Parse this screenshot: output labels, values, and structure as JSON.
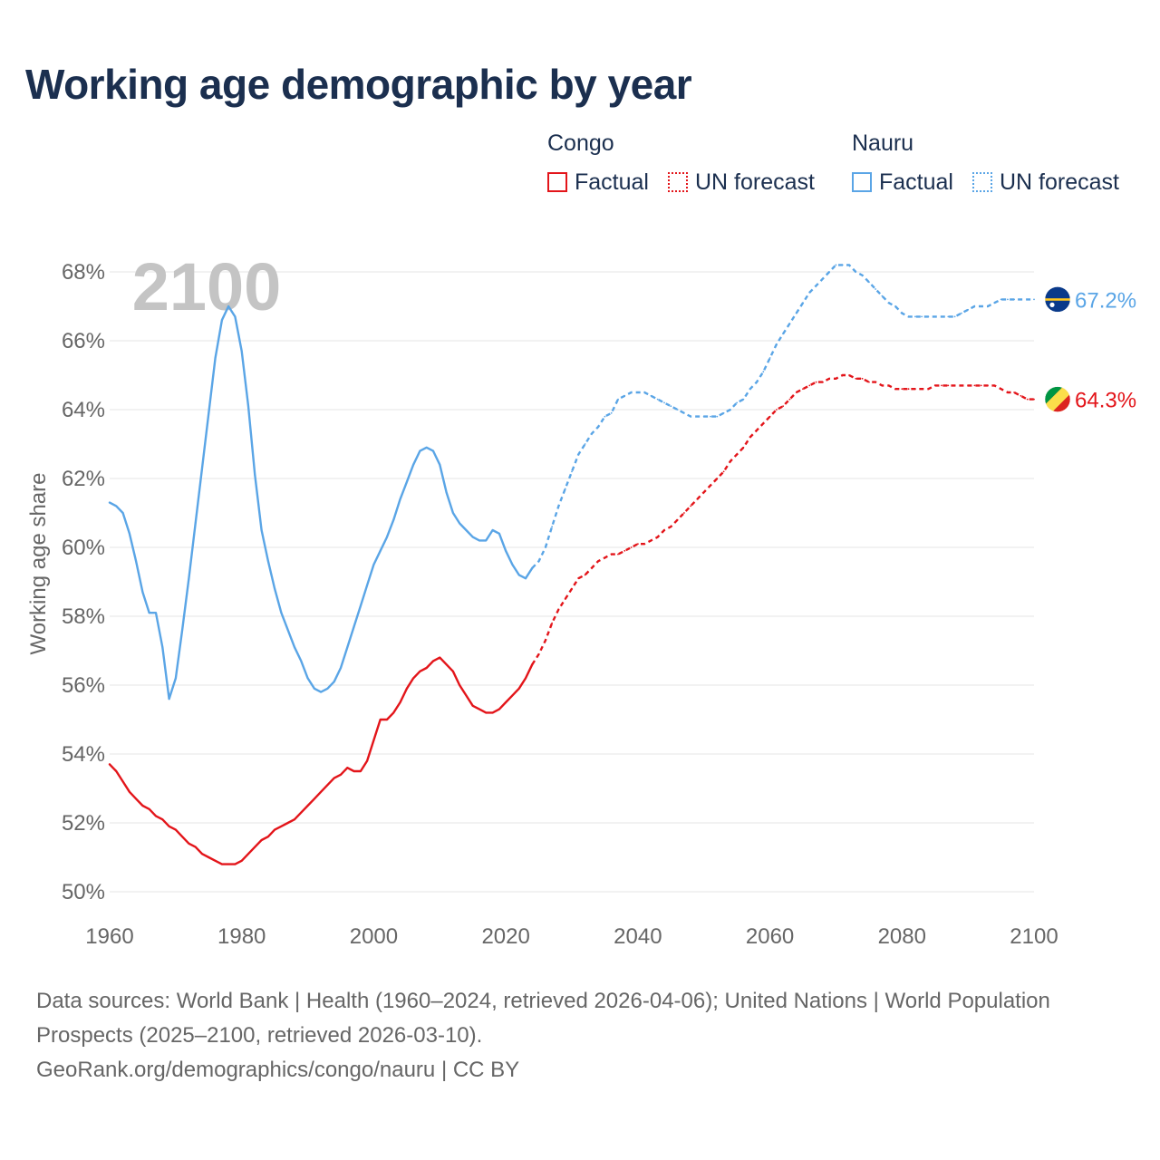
{
  "title": "Working age demographic by year",
  "legend": {
    "groups": [
      {
        "name": "Congo",
        "color": "#e3151a",
        "items": [
          {
            "label": "Factual",
            "style": "solid"
          },
          {
            "label": "UN forecast",
            "style": "dotted"
          }
        ]
      },
      {
        "name": "Nauru",
        "color": "#5aa5e6",
        "items": [
          {
            "label": "Factual",
            "style": "solid"
          },
          {
            "label": "UN forecast",
            "style": "dotted"
          }
        ]
      }
    ]
  },
  "footer": {
    "sources": "Data sources: World Bank | Health (1960–2024, retrieved 2026-04-06); United Nations | World Population Prospects (2025–2100, retrieved 2026-03-10).",
    "credit": "GeoRank.org/demographics/congo/nauru | CC BY"
  },
  "chart_data": {
    "type": "line",
    "ylabel": "Working age share",
    "xlabel": "",
    "year_label": "2100",
    "xlim": [
      1960,
      2100
    ],
    "ylim": [
      50,
      68
    ],
    "x_ticks": [
      1960,
      1980,
      2000,
      2020,
      2040,
      2060,
      2080,
      2100
    ],
    "y_ticks": [
      50,
      52,
      54,
      56,
      58,
      60,
      62,
      64,
      66,
      68
    ],
    "y_tick_labels": [
      "50%",
      "52%",
      "54%",
      "56%",
      "58%",
      "60%",
      "62%",
      "64%",
      "66%",
      "68%"
    ],
    "forecast_start": 2024,
    "grid": true,
    "series": [
      {
        "name": "Nauru",
        "color": "#5aa5e6",
        "end_label": "67.2%",
        "flag": "nauru-flag",
        "points": [
          [
            1960,
            61.3
          ],
          [
            1961,
            61.2
          ],
          [
            1962,
            61.0
          ],
          [
            1963,
            60.4
          ],
          [
            1964,
            59.6
          ],
          [
            1965,
            58.7
          ],
          [
            1966,
            58.1
          ],
          [
            1967,
            58.1
          ],
          [
            1968,
            57.1
          ],
          [
            1969,
            55.6
          ],
          [
            1970,
            56.2
          ],
          [
            1971,
            57.6
          ],
          [
            1972,
            59.1
          ],
          [
            1973,
            60.7
          ],
          [
            1974,
            62.3
          ],
          [
            1975,
            63.9
          ],
          [
            1976,
            65.5
          ],
          [
            1977,
            66.6
          ],
          [
            1978,
            67.0
          ],
          [
            1979,
            66.7
          ],
          [
            1980,
            65.7
          ],
          [
            1981,
            64.1
          ],
          [
            1982,
            62.1
          ],
          [
            1983,
            60.5
          ],
          [
            1984,
            59.6
          ],
          [
            1985,
            58.8
          ],
          [
            1986,
            58.1
          ],
          [
            1987,
            57.6
          ],
          [
            1988,
            57.1
          ],
          [
            1989,
            56.7
          ],
          [
            1990,
            56.2
          ],
          [
            1991,
            55.9
          ],
          [
            1992,
            55.8
          ],
          [
            1993,
            55.9
          ],
          [
            1994,
            56.1
          ],
          [
            1995,
            56.5
          ],
          [
            1996,
            57.1
          ],
          [
            1997,
            57.7
          ],
          [
            1998,
            58.3
          ],
          [
            1999,
            58.9
          ],
          [
            2000,
            59.5
          ],
          [
            2001,
            59.9
          ],
          [
            2002,
            60.3
          ],
          [
            2003,
            60.8
          ],
          [
            2004,
            61.4
          ],
          [
            2005,
            61.9
          ],
          [
            2006,
            62.4
          ],
          [
            2007,
            62.8
          ],
          [
            2008,
            62.9
          ],
          [
            2009,
            62.8
          ],
          [
            2010,
            62.4
          ],
          [
            2011,
            61.6
          ],
          [
            2012,
            61.0
          ],
          [
            2013,
            60.7
          ],
          [
            2014,
            60.5
          ],
          [
            2015,
            60.3
          ],
          [
            2016,
            60.2
          ],
          [
            2017,
            60.2
          ],
          [
            2018,
            60.5
          ],
          [
            2019,
            60.4
          ],
          [
            2020,
            59.9
          ],
          [
            2021,
            59.5
          ],
          [
            2022,
            59.2
          ],
          [
            2023,
            59.1
          ],
          [
            2024,
            59.4
          ],
          [
            2025,
            59.6
          ],
          [
            2026,
            60.0
          ],
          [
            2027,
            60.6
          ],
          [
            2028,
            61.2
          ],
          [
            2029,
            61.7
          ],
          [
            2030,
            62.2
          ],
          [
            2031,
            62.7
          ],
          [
            2032,
            63.0
          ],
          [
            2033,
            63.3
          ],
          [
            2034,
            63.5
          ],
          [
            2035,
            63.8
          ],
          [
            2036,
            63.9
          ],
          [
            2037,
            64.3
          ],
          [
            2038,
            64.4
          ],
          [
            2039,
            64.5
          ],
          [
            2040,
            64.5
          ],
          [
            2041,
            64.5
          ],
          [
            2042,
            64.4
          ],
          [
            2043,
            64.3
          ],
          [
            2044,
            64.2
          ],
          [
            2045,
            64.1
          ],
          [
            2046,
            64.0
          ],
          [
            2047,
            63.9
          ],
          [
            2048,
            63.8
          ],
          [
            2049,
            63.8
          ],
          [
            2050,
            63.8
          ],
          [
            2051,
            63.8
          ],
          [
            2052,
            63.8
          ],
          [
            2053,
            63.9
          ],
          [
            2054,
            64.0
          ],
          [
            2055,
            64.2
          ],
          [
            2056,
            64.3
          ],
          [
            2057,
            64.6
          ],
          [
            2058,
            64.8
          ],
          [
            2059,
            65.1
          ],
          [
            2060,
            65.5
          ],
          [
            2061,
            65.9
          ],
          [
            2062,
            66.2
          ],
          [
            2063,
            66.5
          ],
          [
            2064,
            66.8
          ],
          [
            2065,
            67.1
          ],
          [
            2066,
            67.4
          ],
          [
            2067,
            67.6
          ],
          [
            2068,
            67.8
          ],
          [
            2069,
            68.0
          ],
          [
            2070,
            68.2
          ],
          [
            2071,
            68.2
          ],
          [
            2072,
            68.2
          ],
          [
            2073,
            68.0
          ],
          [
            2074,
            67.9
          ],
          [
            2075,
            67.7
          ],
          [
            2076,
            67.5
          ],
          [
            2077,
            67.3
          ],
          [
            2078,
            67.1
          ],
          [
            2079,
            67.0
          ],
          [
            2080,
            66.8
          ],
          [
            2081,
            66.7
          ],
          [
            2082,
            66.7
          ],
          [
            2083,
            66.7
          ],
          [
            2084,
            66.7
          ],
          [
            2085,
            66.7
          ],
          [
            2086,
            66.7
          ],
          [
            2087,
            66.7
          ],
          [
            2088,
            66.7
          ],
          [
            2089,
            66.8
          ],
          [
            2090,
            66.9
          ],
          [
            2091,
            67.0
          ],
          [
            2092,
            67.0
          ],
          [
            2093,
            67.0
          ],
          [
            2094,
            67.1
          ],
          [
            2095,
            67.2
          ],
          [
            2096,
            67.2
          ],
          [
            2097,
            67.2
          ],
          [
            2098,
            67.2
          ],
          [
            2099,
            67.2
          ],
          [
            2100,
            67.2
          ]
        ]
      },
      {
        "name": "Congo",
        "color": "#e3151a",
        "end_label": "64.3%",
        "flag": "congo-flag",
        "points": [
          [
            1960,
            53.7
          ],
          [
            1961,
            53.5
          ],
          [
            1962,
            53.2
          ],
          [
            1963,
            52.9
          ],
          [
            1964,
            52.7
          ],
          [
            1965,
            52.5
          ],
          [
            1966,
            52.4
          ],
          [
            1967,
            52.2
          ],
          [
            1968,
            52.1
          ],
          [
            1969,
            51.9
          ],
          [
            1970,
            51.8
          ],
          [
            1971,
            51.6
          ],
          [
            1972,
            51.4
          ],
          [
            1973,
            51.3
          ],
          [
            1974,
            51.1
          ],
          [
            1975,
            51.0
          ],
          [
            1976,
            50.9
          ],
          [
            1977,
            50.8
          ],
          [
            1978,
            50.8
          ],
          [
            1979,
            50.8
          ],
          [
            1980,
            50.9
          ],
          [
            1981,
            51.1
          ],
          [
            1982,
            51.3
          ],
          [
            1983,
            51.5
          ],
          [
            1984,
            51.6
          ],
          [
            1985,
            51.8
          ],
          [
            1986,
            51.9
          ],
          [
            1987,
            52.0
          ],
          [
            1988,
            52.1
          ],
          [
            1989,
            52.3
          ],
          [
            1990,
            52.5
          ],
          [
            1991,
            52.7
          ],
          [
            1992,
            52.9
          ],
          [
            1993,
            53.1
          ],
          [
            1994,
            53.3
          ],
          [
            1995,
            53.4
          ],
          [
            1996,
            53.6
          ],
          [
            1997,
            53.5
          ],
          [
            1998,
            53.5
          ],
          [
            1999,
            53.8
          ],
          [
            2000,
            54.4
          ],
          [
            2001,
            55.0
          ],
          [
            2002,
            55.0
          ],
          [
            2003,
            55.2
          ],
          [
            2004,
            55.5
          ],
          [
            2005,
            55.9
          ],
          [
            2006,
            56.2
          ],
          [
            2007,
            56.4
          ],
          [
            2008,
            56.5
          ],
          [
            2009,
            56.7
          ],
          [
            2010,
            56.8
          ],
          [
            2011,
            56.6
          ],
          [
            2012,
            56.4
          ],
          [
            2013,
            56.0
          ],
          [
            2014,
            55.7
          ],
          [
            2015,
            55.4
          ],
          [
            2016,
            55.3
          ],
          [
            2017,
            55.2
          ],
          [
            2018,
            55.2
          ],
          [
            2019,
            55.3
          ],
          [
            2020,
            55.5
          ],
          [
            2021,
            55.7
          ],
          [
            2022,
            55.9
          ],
          [
            2023,
            56.2
          ],
          [
            2024,
            56.6
          ],
          [
            2025,
            56.9
          ],
          [
            2026,
            57.3
          ],
          [
            2027,
            57.8
          ],
          [
            2028,
            58.2
          ],
          [
            2029,
            58.5
          ],
          [
            2030,
            58.8
          ],
          [
            2031,
            59.1
          ],
          [
            2032,
            59.2
          ],
          [
            2033,
            59.4
          ],
          [
            2034,
            59.6
          ],
          [
            2035,
            59.7
          ],
          [
            2036,
            59.8
          ],
          [
            2037,
            59.8
          ],
          [
            2038,
            59.9
          ],
          [
            2039,
            60.0
          ],
          [
            2040,
            60.1
          ],
          [
            2041,
            60.1
          ],
          [
            2042,
            60.2
          ],
          [
            2043,
            60.3
          ],
          [
            2044,
            60.5
          ],
          [
            2045,
            60.6
          ],
          [
            2046,
            60.8
          ],
          [
            2047,
            61.0
          ],
          [
            2048,
            61.2
          ],
          [
            2049,
            61.4
          ],
          [
            2050,
            61.6
          ],
          [
            2051,
            61.8
          ],
          [
            2052,
            62.0
          ],
          [
            2053,
            62.2
          ],
          [
            2054,
            62.5
          ],
          [
            2055,
            62.7
          ],
          [
            2056,
            62.9
          ],
          [
            2057,
            63.2
          ],
          [
            2058,
            63.4
          ],
          [
            2059,
            63.6
          ],
          [
            2060,
            63.8
          ],
          [
            2061,
            64.0
          ],
          [
            2062,
            64.1
          ],
          [
            2063,
            64.3
          ],
          [
            2064,
            64.5
          ],
          [
            2065,
            64.6
          ],
          [
            2066,
            64.7
          ],
          [
            2067,
            64.8
          ],
          [
            2068,
            64.8
          ],
          [
            2069,
            64.9
          ],
          [
            2070,
            64.9
          ],
          [
            2071,
            65.0
          ],
          [
            2072,
            65.0
          ],
          [
            2073,
            64.9
          ],
          [
            2074,
            64.9
          ],
          [
            2075,
            64.8
          ],
          [
            2076,
            64.8
          ],
          [
            2077,
            64.7
          ],
          [
            2078,
            64.7
          ],
          [
            2079,
            64.6
          ],
          [
            2080,
            64.6
          ],
          [
            2081,
            64.6
          ],
          [
            2082,
            64.6
          ],
          [
            2083,
            64.6
          ],
          [
            2084,
            64.6
          ],
          [
            2085,
            64.7
          ],
          [
            2086,
            64.7
          ],
          [
            2087,
            64.7
          ],
          [
            2088,
            64.7
          ],
          [
            2089,
            64.7
          ],
          [
            2090,
            64.7
          ],
          [
            2091,
            64.7
          ],
          [
            2092,
            64.7
          ],
          [
            2093,
            64.7
          ],
          [
            2094,
            64.7
          ],
          [
            2095,
            64.6
          ],
          [
            2096,
            64.5
          ],
          [
            2097,
            64.5
          ],
          [
            2098,
            64.4
          ],
          [
            2099,
            64.3
          ],
          [
            2100,
            64.3
          ]
        ]
      }
    ]
  }
}
